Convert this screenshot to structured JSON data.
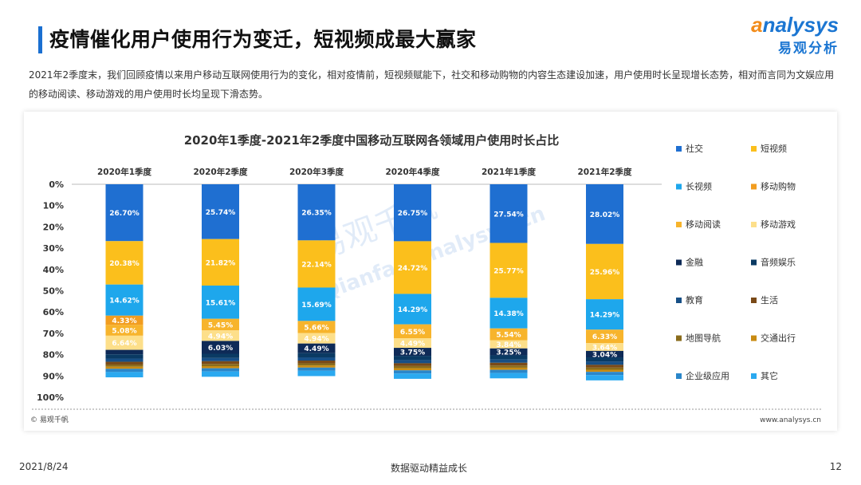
{
  "page": {
    "title": "疫情催化用户使用行为变迁，短视频成最大赢家",
    "logo_text": "nalysys",
    "logo_letter": "a",
    "logo_cn": "易观分析",
    "description": "2021年2季度末，我们回顾疫情以来用户移动互联网使用行为的变化，相对疫情前，短视频赋能下，社交和移动购物的内容生态建设加速，用户使用时长呈现增长态势，相对而言同为文娱应用的移动阅读、移动游戏的用户使用时长均呈现下滑态势。",
    "footer_date": "2021/8/24",
    "footer_center": "数据驱动精益成长",
    "footer_page": "12",
    "source_left": "© 易观千帆",
    "source_right": "www.analysys.cn",
    "watermark_cn": "易观千帆",
    "watermark_en": "Qianfan.analysys.cn"
  },
  "chart_data": {
    "type": "bar",
    "stacked": true,
    "orientation": "vertical",
    "title": "2020年1季度-2021年2季度中国移动互联网各领域用户使用时长占比",
    "categories": [
      "2020年1季度",
      "2020年2季度",
      "2020年3季度",
      "2020年4季度",
      "2021年1季度",
      "2021年2季度"
    ],
    "y_ticks": [
      "0%",
      "10%",
      "20%",
      "30%",
      "40%",
      "50%",
      "60%",
      "70%",
      "80%",
      "90%",
      "100%"
    ],
    "ylim": [
      0,
      100
    ],
    "y_reversed": true,
    "legend_position": "right",
    "series": [
      {
        "name": "社交",
        "color": "#1f6fd1",
        "values": [
          26.7,
          25.74,
          26.35,
          26.75,
          27.54,
          28.02
        ],
        "labels": [
          "26.70%",
          "25.74%",
          "26.35%",
          "26.75%",
          "27.54%",
          "28.02%"
        ]
      },
      {
        "name": "短视频",
        "color": "#fbbf1c",
        "values": [
          20.38,
          21.82,
          22.14,
          24.72,
          25.77,
          25.96
        ],
        "labels": [
          "20.38%",
          "21.82%",
          "22.14%",
          "24.72%",
          "25.77%",
          "25.96%"
        ]
      },
      {
        "name": "长视频",
        "color": "#1ea7ec",
        "values": [
          14.62,
          15.61,
          15.69,
          14.29,
          14.38,
          14.29
        ],
        "labels": [
          "14.62%",
          "15.61%",
          "15.69%",
          "14.29%",
          "14.38%",
          "14.29%"
        ]
      },
      {
        "name": "移动购物",
        "color": "#f29d1f",
        "values": [
          4.33,
          0,
          0,
          0,
          0,
          0
        ],
        "labels": [
          "4.33%",
          "",
          "",
          "",
          "",
          ""
        ]
      },
      {
        "name": "移动阅读",
        "color": "#f7b42c",
        "values": [
          5.08,
          5.45,
          5.66,
          6.55,
          5.54,
          6.33
        ],
        "labels": [
          "5.08%",
          "5.45%",
          "5.66%",
          "6.55%",
          "5.54%",
          "6.33%"
        ]
      },
      {
        "name": "移动游戏",
        "color": "#fddf8a",
        "values": [
          6.64,
          4.94,
          4.94,
          4.49,
          3.84,
          3.64
        ],
        "labels": [
          "6.64%",
          "4.94%",
          "4.94%",
          "4.49%",
          "3.84%",
          "3.64%"
        ]
      },
      {
        "name": "金融",
        "color": "#0e2a57",
        "values": [
          2.1,
          6.03,
          4.49,
          3.75,
          3.25,
          3.04
        ],
        "labels": [
          "",
          "6.03%",
          "4.49%",
          "3.75%",
          "3.25%",
          "3.04%"
        ]
      },
      {
        "name": "音频娱乐",
        "color": "#0a3a63",
        "values": [
          2.0,
          2.0,
          2.0,
          2.0,
          2.0,
          2.0
        ],
        "labels": [
          "",
          "",
          "",
          "",
          "",
          ""
        ]
      },
      {
        "name": "教育",
        "color": "#174f86",
        "values": [
          1.5,
          1.5,
          1.5,
          1.5,
          1.5,
          1.5
        ],
        "labels": [
          "",
          "",
          "",
          "",
          "",
          ""
        ]
      },
      {
        "name": "生活",
        "color": "#7a4a18",
        "values": [
          1.3,
          1.3,
          1.3,
          1.3,
          1.3,
          1.3
        ],
        "labels": [
          "",
          "",
          "",
          "",
          "",
          ""
        ]
      },
      {
        "name": "地图导航",
        "color": "#8a6c1c",
        "values": [
          1.0,
          1.0,
          1.0,
          1.0,
          1.0,
          1.0
        ],
        "labels": [
          "",
          "",
          "",
          "",
          "",
          ""
        ]
      },
      {
        "name": "交通出行",
        "color": "#c88b12",
        "values": [
          1.0,
          1.0,
          1.0,
          1.0,
          1.0,
          1.0
        ],
        "labels": [
          "",
          "",
          "",
          "",
          "",
          ""
        ]
      },
      {
        "name": "企业级应用",
        "color": "#2a86c9",
        "values": [
          1.5,
          1.5,
          1.5,
          1.5,
          1.5,
          1.5
        ],
        "labels": [
          "",
          "",
          "",
          "",
          "",
          ""
        ]
      },
      {
        "name": "其它",
        "color": "#2aa9f0",
        "values": [
          2.5,
          2.5,
          2.5,
          2.5,
          2.5,
          2.5
        ],
        "labels": [
          "",
          "",
          "",
          "",
          "",
          ""
        ]
      }
    ]
  }
}
